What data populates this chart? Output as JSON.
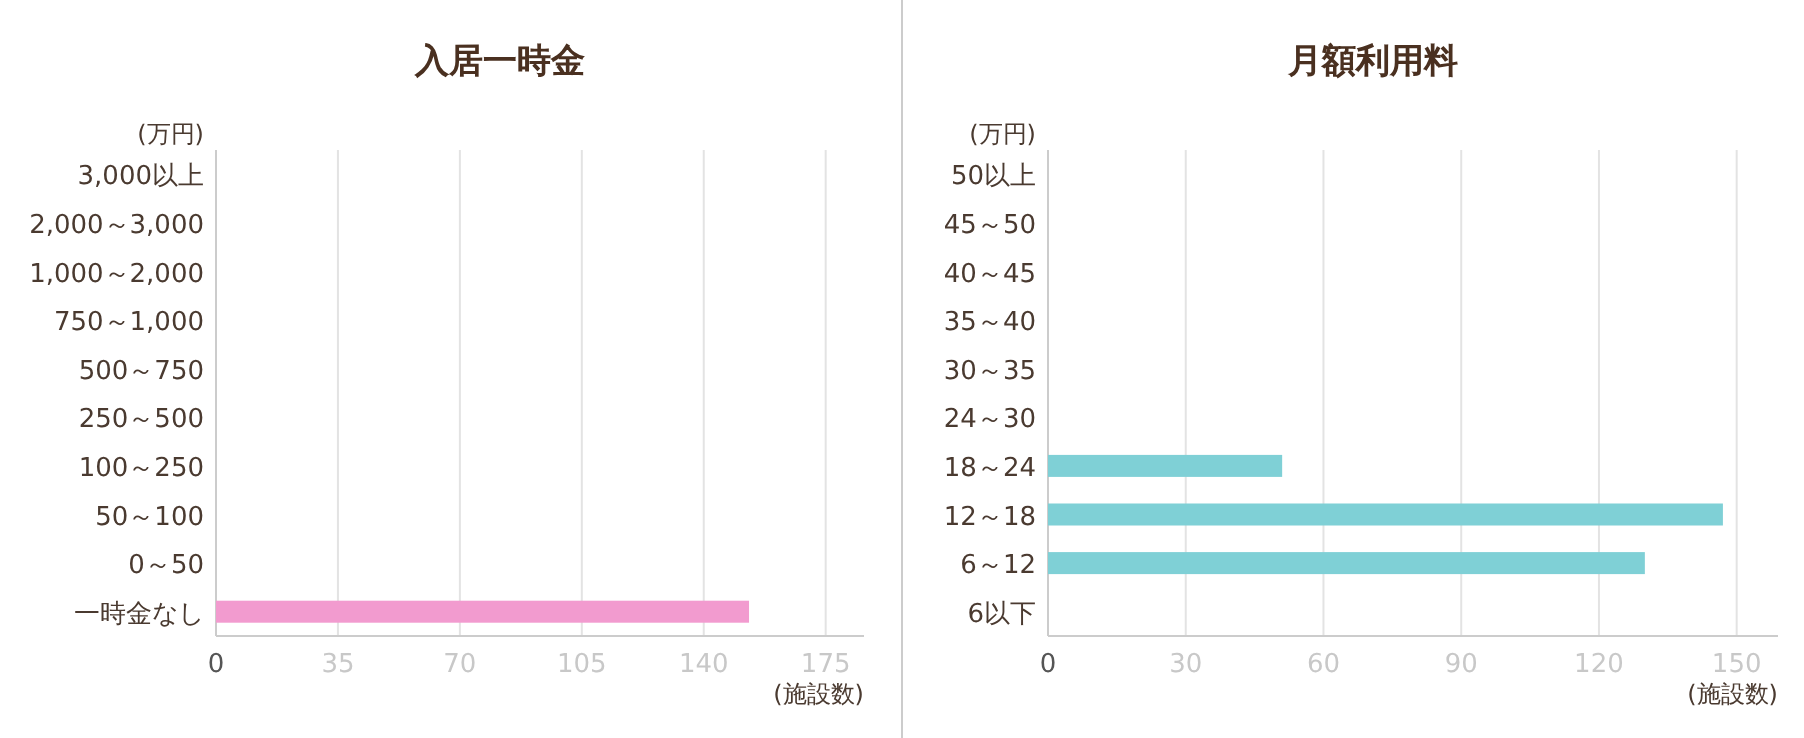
{
  "chart_data": [
    {
      "type": "bar",
      "orientation": "horizontal",
      "title": "入居一時金",
      "ylabel": "(万円)",
      "xlabel": "(施設数)",
      "categories": [
        "3,000以上",
        "2,000～3,000",
        "1,000～2,000",
        "750～1,000",
        "500～750",
        "250～500",
        "100～250",
        "50～100",
        "0～50",
        "一時金なし"
      ],
      "values": [
        0,
        0,
        0,
        0,
        0,
        0,
        0,
        0,
        0,
        153
      ],
      "color": "#f29bcf",
      "xlim": [
        0,
        186
      ],
      "xticks": [
        0,
        35,
        70,
        105,
        140,
        175
      ],
      "grid": "x"
    },
    {
      "type": "bar",
      "orientation": "horizontal",
      "title": "月額利用料",
      "ylabel": "(万円)",
      "xlabel": "(施設数)",
      "categories": [
        "50以上",
        "45～50",
        "40～45",
        "35～40",
        "30～35",
        "24～30",
        "18～24",
        "12～18",
        "6～12",
        "6以下"
      ],
      "values": [
        0,
        0,
        0,
        0,
        0,
        0,
        51,
        147,
        130,
        0
      ],
      "color": "#7fd0d6",
      "xlim": [
        0,
        159
      ],
      "xticks": [
        0,
        30,
        60,
        90,
        120,
        150
      ],
      "grid": "x"
    }
  ]
}
